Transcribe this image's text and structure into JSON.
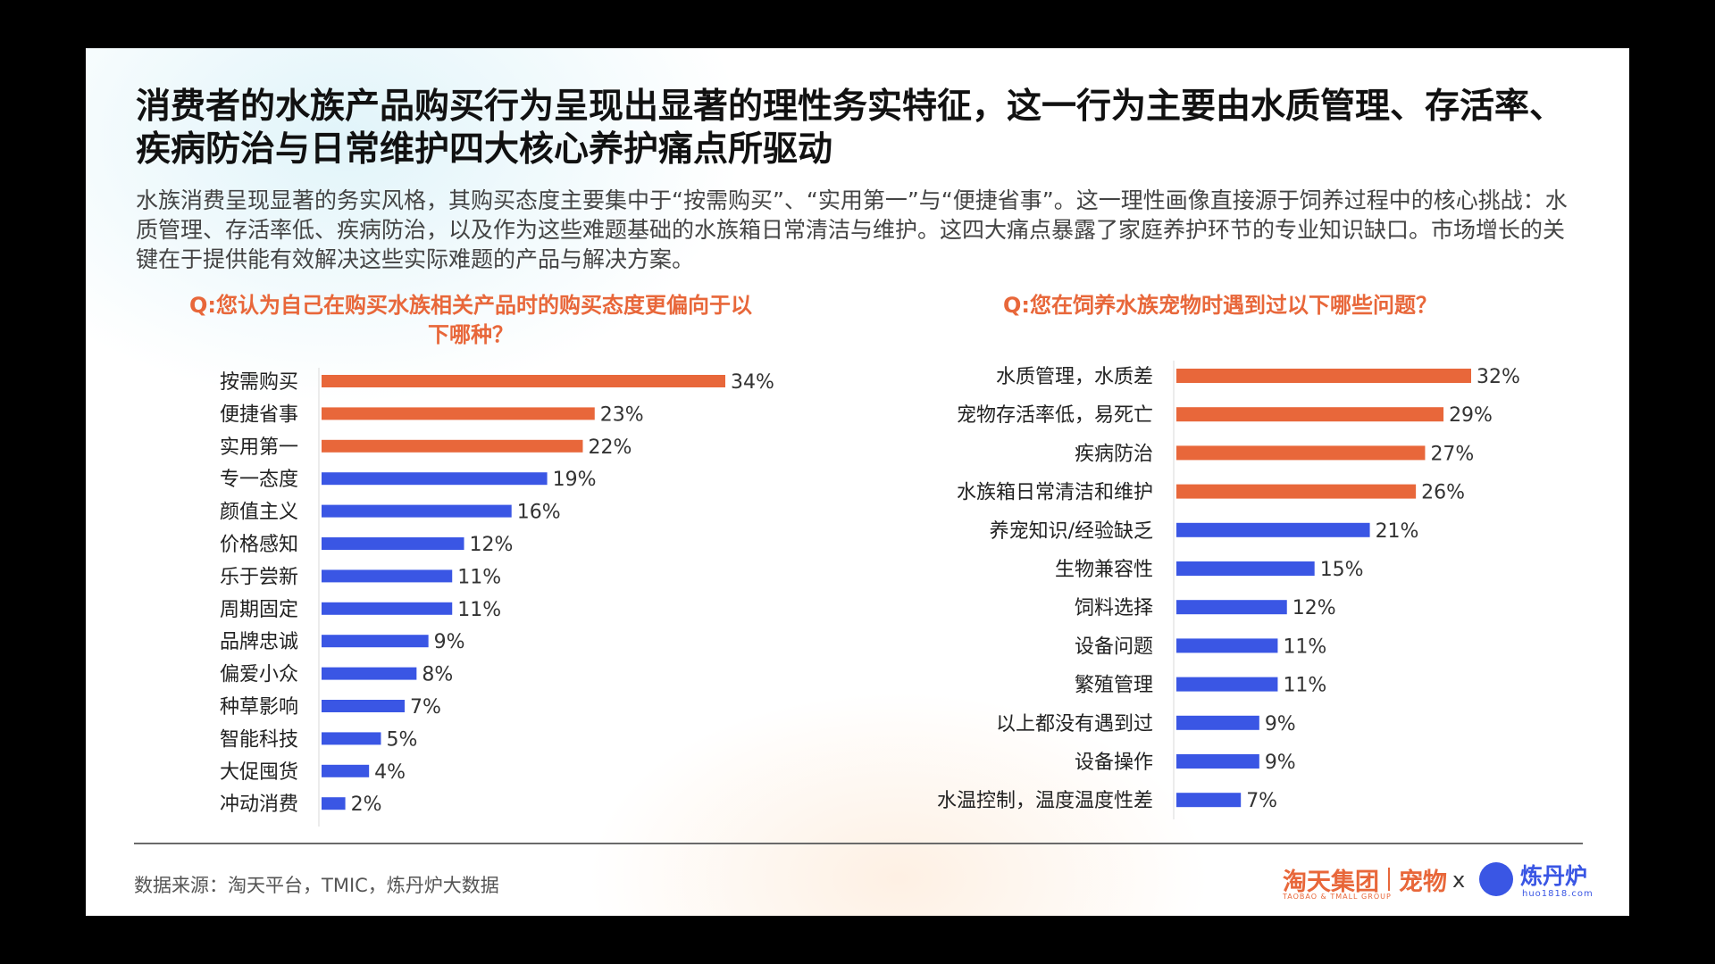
{
  "headline": "消费者的水族产品购买行为呈现出显著的理性务实特征，这一行为主要由水质管理、存活率、疾病防治与日常维护四大核心养护痛点所驱动",
  "intro": "水族消费呈现显著的务实风格，其购买态度主要集中于“按需购买”、“实用第一”与“便捷省事”。这一理性画像直接源于饲养过程中的核心挑战：水质管理、存活率低、疾病防治，以及作为这些难题基础的水族箱日常清洁与维护。这四大痛点暴露了家庭养护环节的专业知识缺口。市场增长的关键在于提供能有效解决这些实际难题的产品与解决方案。",
  "colors": {
    "highlight": "#e8673a",
    "normal": "#3a56e4"
  },
  "chart_data": [
    {
      "type": "bar",
      "orientation": "horizontal",
      "title": "Q:您认为自己在购买水族相关产品时的购买态度更偏向于以下哪种？",
      "categories": [
        "按需购买",
        "便捷省事",
        "实用第一",
        "专一态度",
        "颜值主义",
        "价格感知",
        "乐于尝新",
        "周期固定",
        "品牌忠诚",
        "偏爱小众",
        "种草影响",
        "智能科技",
        "大促囤货",
        "冲动消费"
      ],
      "values": [
        34,
        23,
        22,
        19,
        16,
        12,
        11,
        11,
        9,
        8,
        7,
        5,
        4,
        2
      ],
      "value_labels": [
        "34%",
        "23%",
        "22%",
        "19%",
        "16%",
        "12%",
        "11%",
        "11%",
        "9%",
        "8%",
        "7%",
        "5%",
        "4%",
        "2%"
      ],
      "highlighted": [
        true,
        true,
        true,
        false,
        false,
        false,
        false,
        false,
        false,
        false,
        false,
        false,
        false,
        false
      ],
      "xlim": [
        0,
        34
      ]
    },
    {
      "type": "bar",
      "orientation": "horizontal",
      "title": "Q:您在饲养水族宠物时遇到过以下哪些问题？",
      "categories": [
        "水质管理，水质差",
        "宠物存活率低，易死亡",
        "疾病防治",
        "水族箱日常清洁和维护",
        "养宠知识/经验缺乏",
        "生物兼容性",
        "饲料选择",
        "设备问题",
        "繁殖管理",
        "以上都没有遇到过",
        "设备操作",
        "水温控制，温度温度性差"
      ],
      "values": [
        32,
        29,
        27,
        26,
        21,
        15,
        12,
        11,
        11,
        9,
        9,
        7
      ],
      "value_labels": [
        "32%",
        "29%",
        "27%",
        "26%",
        "21%",
        "15%",
        "12%",
        "11%",
        "11%",
        "9%",
        "9%",
        "7%"
      ],
      "highlighted": [
        true,
        true,
        true,
        true,
        false,
        false,
        false,
        false,
        false,
        false,
        false,
        false
      ],
      "xlim": [
        0,
        32
      ]
    }
  ],
  "footer": {
    "source": "数据来源：淘天平台，TMIC，炼丹炉大数据",
    "brand_taotian": "淘天集团",
    "brand_taotian_en": "TAOBAO & TMALL GROUP",
    "brand_pet": "宠物",
    "brand_x": "x",
    "brand_liandanlu": "炼丹炉",
    "brand_liandanlu_en": "huo1818.com"
  }
}
